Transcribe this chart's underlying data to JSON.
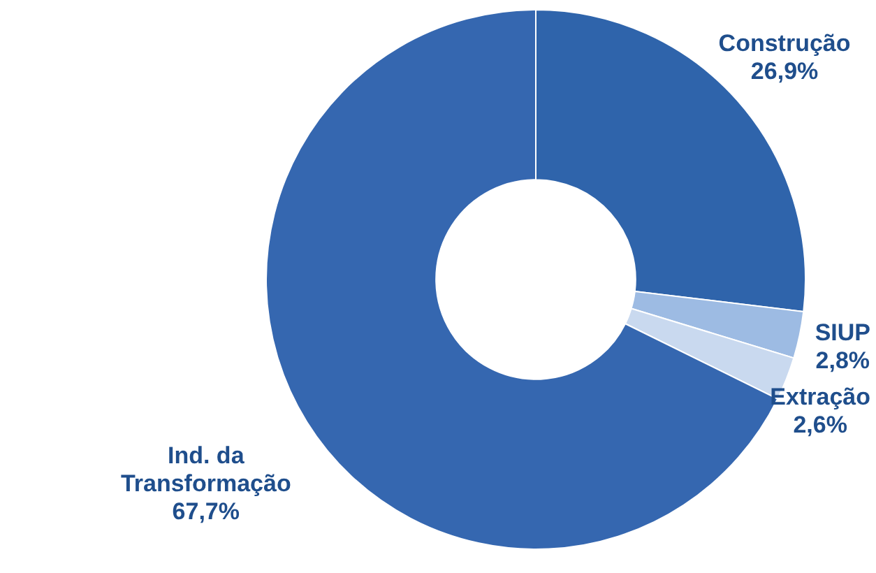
{
  "chart_data": {
    "type": "donut",
    "categories": [
      "Construção",
      "SIUP",
      "Extração",
      "Ind. da Transformação"
    ],
    "values": [
      26.9,
      2.8,
      2.6,
      67.7
    ],
    "value_labels": [
      "26,9%",
      "2,8%",
      "2,6%",
      "67,7%"
    ],
    "colors": [
      "#2f64ab",
      "#9dbbe3",
      "#c9d9ef",
      "#3567b0"
    ],
    "legend": false
  }
}
